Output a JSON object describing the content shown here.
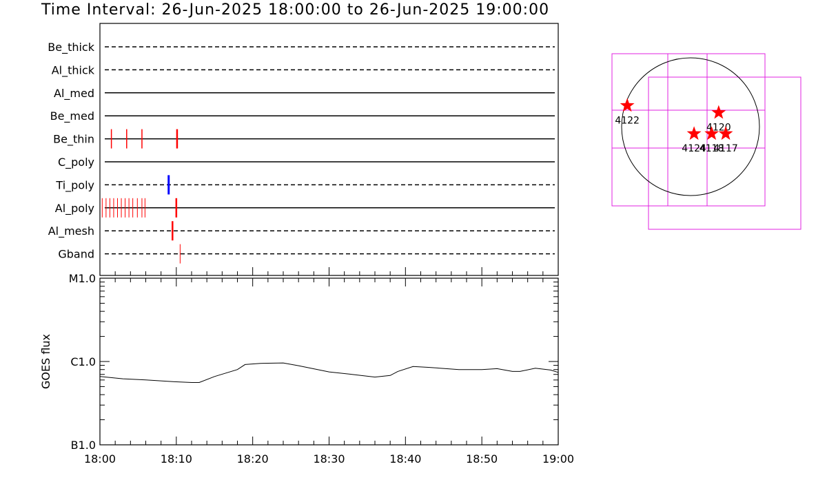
{
  "header": {
    "title": "Time Interval: 26-Jun-2025 18:00:00 to 26-Jun-2025 19:00:00"
  },
  "colors": {
    "axis": "#000000",
    "event_red": "#ff0000",
    "event_blue": "#0000ff",
    "map_grid": "#e020e0",
    "marker": "#ff0000"
  },
  "chart_data": [
    {
      "type": "timeline",
      "title": "",
      "xlim": [
        "18:00",
        "19:00"
      ],
      "rows": [
        {
          "label": "Be_thick",
          "style": "dashed",
          "events": []
        },
        {
          "label": "Al_thick",
          "style": "dashed",
          "events": []
        },
        {
          "label": "Al_med",
          "style": "solid",
          "events": []
        },
        {
          "label": "Be_med",
          "style": "solid",
          "events": []
        },
        {
          "label": "Be_thin",
          "style": "solid",
          "events": [
            {
              "t": 1.5,
              "color": "red",
              "weight": 1.5
            },
            {
              "t": 3.5,
              "color": "red",
              "weight": 1.5
            },
            {
              "t": 5.5,
              "color": "red",
              "weight": 1.5
            },
            {
              "t": 10.1,
              "color": "red",
              "weight": 2.5
            }
          ]
        },
        {
          "label": "C_poly",
          "style": "solid",
          "events": []
        },
        {
          "label": "Ti_poly",
          "style": "dashed",
          "events": [
            {
              "t": 9.0,
              "color": "blue",
              "weight": 3
            }
          ]
        },
        {
          "label": "Al_poly",
          "style": "solid",
          "events": [
            {
              "t": 0.3,
              "color": "red",
              "weight": 1
            },
            {
              "t": 0.8,
              "color": "red",
              "weight": 1
            },
            {
              "t": 1.3,
              "color": "red",
              "weight": 1
            },
            {
              "t": 1.8,
              "color": "red",
              "weight": 1
            },
            {
              "t": 2.3,
              "color": "red",
              "weight": 1
            },
            {
              "t": 2.8,
              "color": "red",
              "weight": 1
            },
            {
              "t": 3.3,
              "color": "red",
              "weight": 1
            },
            {
              "t": 3.8,
              "color": "red",
              "weight": 1
            },
            {
              "t": 4.3,
              "color": "red",
              "weight": 1
            },
            {
              "t": 4.9,
              "color": "red",
              "weight": 1
            },
            {
              "t": 5.5,
              "color": "red",
              "weight": 1
            },
            {
              "t": 5.9,
              "color": "red",
              "weight": 1
            },
            {
              "t": 10.0,
              "color": "red",
              "weight": 2.5
            }
          ]
        },
        {
          "label": "Al_mesh",
          "style": "dashed",
          "events": [
            {
              "t": 9.5,
              "color": "red",
              "weight": 2.5
            }
          ]
        },
        {
          "label": "Gband",
          "style": "dashed",
          "events": [
            {
              "t": 10.5,
              "color": "red",
              "weight": 1
            }
          ]
        }
      ]
    },
    {
      "type": "line",
      "title": "",
      "ylabel": "GOES flux",
      "xlabel": "",
      "y_scale": "log",
      "ylim": [
        "B1.0",
        "M1.0"
      ],
      "y_ticks": [
        "B1.0",
        "C1.0",
        "M1.0"
      ],
      "x_ticks": [
        "18:00",
        "18:10",
        "18:20",
        "18:30",
        "18:40",
        "18:50",
        "19:00"
      ],
      "series": [
        {
          "x": [
            0,
            3,
            6,
            10,
            12,
            13,
            15,
            18,
            19,
            21,
            24,
            26,
            30,
            33,
            36,
            38,
            39,
            41,
            43,
            47,
            50,
            52,
            54,
            55,
            57,
            59,
            60
          ],
          "values": [
            6.6,
            6.2,
            6.0,
            5.7,
            5.6,
            5.6,
            6.6,
            8.0,
            9.2,
            9.5,
            9.6,
            8.9,
            7.5,
            7.0,
            6.5,
            6.8,
            7.6,
            8.7,
            8.5,
            8.0,
            8.0,
            8.2,
            7.6,
            7.6,
            8.3,
            7.9,
            7.4
          ]
        }
      ]
    },
    {
      "type": "scatter",
      "title": "",
      "description_units": "arcsec",
      "markers": [
        {
          "label": "4122",
          "x": -900,
          "y": 300
        },
        {
          "label": "4120",
          "x": 400,
          "y": 200
        },
        {
          "label": "4124",
          "x": 50,
          "y": -100
        },
        {
          "label": "4118",
          "x": 300,
          "y": -100
        },
        {
          "label": "4117",
          "x": 500,
          "y": -100
        }
      ]
    }
  ]
}
